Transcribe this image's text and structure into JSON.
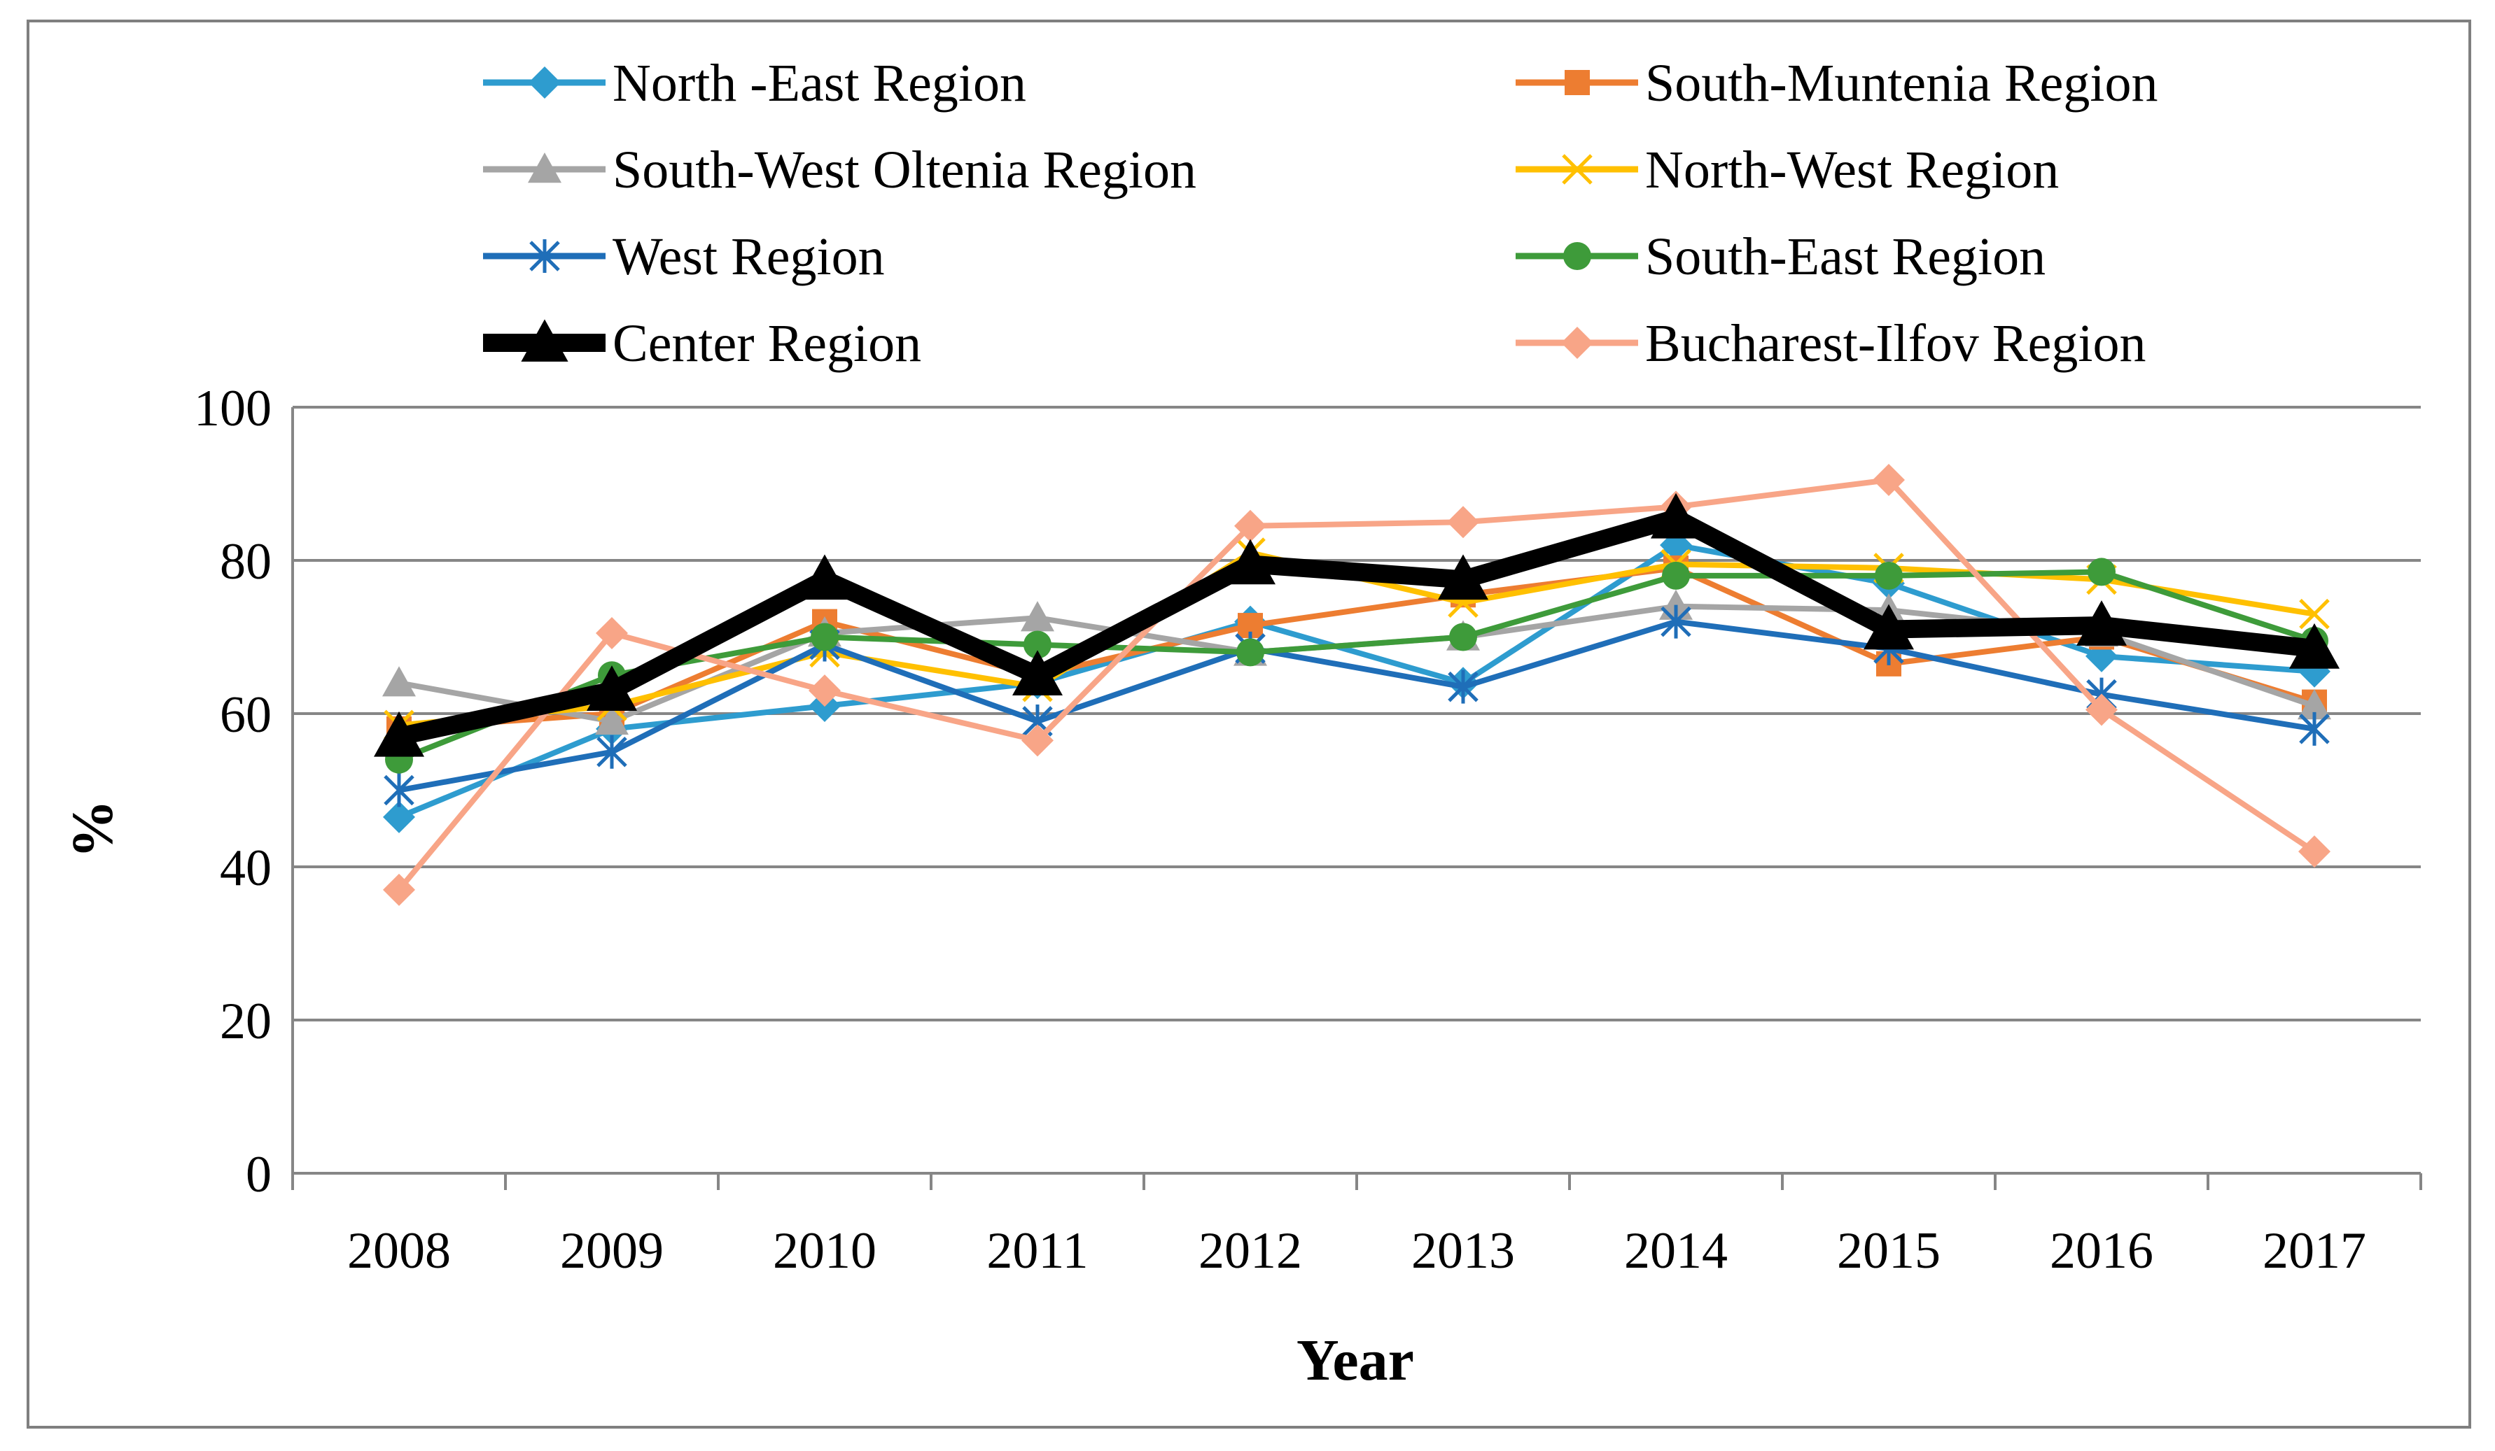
{
  "chart_data": {
    "type": "line",
    "title": "",
    "xlabel": "Year",
    "ylabel": "%",
    "ylim": [
      0,
      100
    ],
    "yticks": [
      0,
      20,
      40,
      60,
      80,
      100
    ],
    "grid": true,
    "legend_position": "top",
    "categories": [
      "2008",
      "2009",
      "2010",
      "2011",
      "2012",
      "2013",
      "2014",
      "2015",
      "2016",
      "2017"
    ],
    "series": [
      {
        "name": "North -East Region",
        "color": "#2E9CCF",
        "marker": "diamond",
        "values": [
          46.5,
          58,
          61,
          64,
          72,
          64,
          82,
          77,
          67.5,
          65.5
        ]
      },
      {
        "name": "South-Muntenia Region",
        "color": "#ED7D31",
        "marker": "square",
        "values": [
          58,
          60,
          72,
          65,
          71.5,
          75.5,
          79,
          66.5,
          70,
          61.5
        ]
      },
      {
        "name": "South-West Oltenia Region",
        "color": "#A5A5A5",
        "marker": "triangle",
        "values": [
          64,
          59,
          70.5,
          72.5,
          68,
          70,
          74,
          73.5,
          70.5,
          61
        ]
      },
      {
        "name": "North-West Region",
        "color": "#FFC000",
        "marker": "x",
        "values": [
          58.5,
          61,
          68,
          63.5,
          81,
          74.5,
          79.5,
          79,
          77.5,
          73
        ]
      },
      {
        "name": "West Region",
        "color": "#1F6EB8",
        "marker": "asterisk",
        "values": [
          50,
          55,
          69,
          59,
          68.5,
          63.5,
          72,
          68.5,
          62.5,
          58
        ]
      },
      {
        "name": "South-East Region",
        "color": "#3E9B3A",
        "marker": "circle",
        "values": [
          54,
          65,
          70,
          69,
          68,
          70,
          78,
          78,
          78.5,
          69.5
        ]
      },
      {
        "name": "Center Region",
        "color": "#000000",
        "marker": "triangle",
        "bold": true,
        "values": [
          57,
          63,
          77.5,
          65,
          79.5,
          77.5,
          85.5,
          71,
          71.5,
          68.5
        ]
      },
      {
        "name": "Bucharest-Ilfov Region",
        "color": "#F8A587",
        "marker": "diamond",
        "values": [
          37,
          70.5,
          63,
          56.5,
          84.5,
          85,
          87,
          90.5,
          60.5,
          42
        ]
      }
    ]
  }
}
